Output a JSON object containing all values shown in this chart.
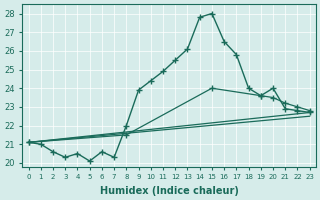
{
  "xlabel": "Humidex (Indice chaleur)",
  "ylabel": "",
  "background_color": "#d6ecea",
  "line_color": "#1a6b5a",
  "grid_color": "#ffffff",
  "xlim": [
    -0.5,
    23.5
  ],
  "ylim": [
    19.8,
    28.5
  ],
  "xticks": [
    0,
    1,
    2,
    3,
    4,
    5,
    6,
    7,
    8,
    9,
    10,
    11,
    12,
    13,
    14,
    15,
    16,
    17,
    18,
    19,
    20,
    21,
    22,
    23
  ],
  "yticks": [
    20,
    21,
    22,
    23,
    24,
    25,
    26,
    27,
    28
  ],
  "series": [
    {
      "x": [
        0,
        1,
        2,
        3,
        4,
        5,
        6,
        7,
        8,
        9,
        10,
        11,
        12,
        13,
        14,
        15,
        16,
        17,
        18,
        19,
        20,
        21,
        22,
        23
      ],
      "y": [
        21.1,
        21.0,
        20.6,
        20.3,
        20.5,
        20.1,
        20.6,
        20.3,
        22.0,
        23.9,
        24.4,
        24.9,
        25.5,
        26.1,
        27.8,
        28.0,
        26.5,
        25.8,
        24.0,
        23.6,
        24.0,
        22.9,
        22.8,
        22.7
      ],
      "marker": "+",
      "markersize": 5,
      "linewidth": 1.0
    },
    {
      "x": [
        0,
        8,
        15,
        19,
        20,
        21,
        22,
        23
      ],
      "y": [
        21.1,
        21.5,
        24.0,
        23.6,
        23.5,
        23.2,
        23.0,
        22.8
      ],
      "marker": "+",
      "markersize": 4,
      "linewidth": 0.9
    },
    {
      "x": [
        0,
        23
      ],
      "y": [
        21.1,
        22.7
      ],
      "marker": "None",
      "markersize": 0,
      "linewidth": 0.9
    },
    {
      "x": [
        0,
        23
      ],
      "y": [
        21.1,
        22.5
      ],
      "marker": "None",
      "markersize": 0,
      "linewidth": 0.9
    }
  ]
}
